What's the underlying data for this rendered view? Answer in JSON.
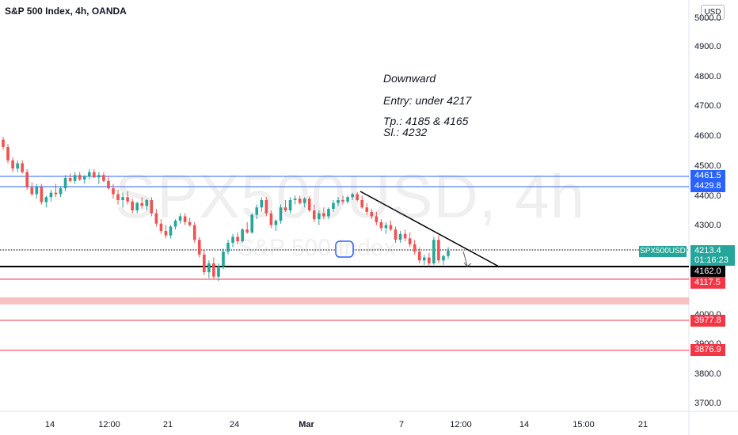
{
  "header": {
    "title": "S&P 500 Index, 4h, OANDA",
    "currency_button": "USD"
  },
  "watermark": {
    "symbol": "SPX500USD, 4h",
    "name": "S&P 500 Index"
  },
  "annotation": {
    "line1": "Downward",
    "line2": "Entry: under 4217",
    "line3": "Tp.: 4185 & 4165",
    "line4": "Sl.: 4232"
  },
  "price_axis": {
    "ticks": [
      "5000.0",
      "4900.0",
      "4800.0",
      "4700.0",
      "4600.0",
      "4500.0",
      "4400.0",
      "4300.0",
      "4000.0",
      "3900.0",
      "3800.0",
      "3700.0"
    ]
  },
  "time_axis": {
    "ticks": [
      "14",
      "12:00",
      "21",
      "24",
      "Mar",
      "7",
      "12:00",
      "14",
      "15:00",
      "21"
    ]
  },
  "price_tags": {
    "level1": "4461.5",
    "level2": "4429.8",
    "current_price": "4213.4",
    "countdown": "01:16:23",
    "symbol_label": "SPX500USD",
    "level3": "4162.0",
    "level4": "4117.5",
    "level5": "3977.8",
    "level6": "3876.9"
  },
  "colors": {
    "up": "#26a69a",
    "down": "#ef5350",
    "blue_line": "#2962ff",
    "red_line": "#f23645",
    "black_line": "#000000",
    "zone": "#f7c1c1"
  },
  "chart_data": {
    "type": "candlestick",
    "title": "S&P 500 Index, 4h, OANDA",
    "y_axis_range": [
      3650,
      5050
    ],
    "horizontal_levels": [
      4461.5,
      4429.8,
      4220,
      4162.0,
      4117.5,
      3977.8,
      3876.9
    ],
    "supply_zone": [
      4030,
      4050
    ],
    "last_price": 4213.4,
    "trendline": {
      "from_price": 4410,
      "to_price": 4162
    },
    "candles": [
      [
        4590,
        4600,
        4555,
        4565
      ],
      [
        4565,
        4575,
        4510,
        4520
      ],
      [
        4520,
        4530,
        4480,
        4492
      ],
      [
        4492,
        4520,
        4480,
        4510
      ],
      [
        4510,
        4520,
        4475,
        4480
      ],
      [
        4480,
        4490,
        4420,
        4428
      ],
      [
        4428,
        4445,
        4400,
        4405
      ],
      [
        4405,
        4440,
        4390,
        4430
      ],
      [
        4430,
        4440,
        4370,
        4378
      ],
      [
        4378,
        4400,
        4360,
        4395
      ],
      [
        4395,
        4420,
        4380,
        4410
      ],
      [
        4410,
        4440,
        4395,
        4405
      ],
      [
        4405,
        4430,
        4395,
        4425
      ],
      [
        4425,
        4470,
        4415,
        4460
      ],
      [
        4460,
        4475,
        4445,
        4450
      ],
      [
        4450,
        4480,
        4440,
        4470
      ],
      [
        4470,
        4480,
        4450,
        4455
      ],
      [
        4455,
        4470,
        4440,
        4465
      ],
      [
        4465,
        4490,
        4455,
        4480
      ],
      [
        4480,
        4490,
        4460,
        4462
      ],
      [
        4462,
        4480,
        4440,
        4470
      ],
      [
        4470,
        4480,
        4445,
        4450
      ],
      [
        4450,
        4465,
        4420,
        4425
      ],
      [
        4425,
        4440,
        4390,
        4405
      ],
      [
        4405,
        4420,
        4370,
        4385
      ],
      [
        4385,
        4410,
        4360,
        4395
      ],
      [
        4395,
        4415,
        4370,
        4380
      ],
      [
        4380,
        4390,
        4340,
        4350
      ],
      [
        4350,
        4380,
        4340,
        4375
      ],
      [
        4375,
        4395,
        4355,
        4365
      ],
      [
        4365,
        4390,
        4350,
        4385
      ],
      [
        4385,
        4395,
        4330,
        4340
      ],
      [
        4340,
        4355,
        4295,
        4305
      ],
      [
        4305,
        4320,
        4270,
        4280
      ],
      [
        4280,
        4300,
        4255,
        4265
      ],
      [
        4265,
        4300,
        4255,
        4295
      ],
      [
        4295,
        4320,
        4285,
        4315
      ],
      [
        4315,
        4340,
        4305,
        4330
      ],
      [
        4330,
        4340,
        4300,
        4310
      ],
      [
        4310,
        4325,
        4295,
        4300
      ],
      [
        4300,
        4310,
        4240,
        4250
      ],
      [
        4250,
        4260,
        4190,
        4200
      ],
      [
        4200,
        4215,
        4130,
        4140
      ],
      [
        4140,
        4180,
        4120,
        4170
      ],
      [
        4170,
        4190,
        4115,
        4125
      ],
      [
        4125,
        4170,
        4110,
        4160
      ],
      [
        4160,
        4220,
        4150,
        4210
      ],
      [
        4210,
        4250,
        4200,
        4240
      ],
      [
        4240,
        4270,
        4225,
        4260
      ],
      [
        4260,
        4275,
        4235,
        4245
      ],
      [
        4245,
        4290,
        4240,
        4285
      ],
      [
        4285,
        4310,
        4270,
        4275
      ],
      [
        4275,
        4340,
        4270,
        4335
      ],
      [
        4335,
        4370,
        4320,
        4360
      ],
      [
        4360,
        4395,
        4345,
        4385
      ],
      [
        4385,
        4395,
        4330,
        4340
      ],
      [
        4340,
        4350,
        4290,
        4300
      ],
      [
        4300,
        4320,
        4280,
        4315
      ],
      [
        4315,
        4370,
        4305,
        4360
      ],
      [
        4360,
        4385,
        4345,
        4350
      ],
      [
        4350,
        4395,
        4340,
        4385
      ],
      [
        4385,
        4400,
        4370,
        4390
      ],
      [
        4390,
        4400,
        4370,
        4375
      ],
      [
        4375,
        4395,
        4360,
        4390
      ],
      [
        4390,
        4398,
        4345,
        4350
      ],
      [
        4350,
        4370,
        4310,
        4320
      ],
      [
        4320,
        4350,
        4300,
        4340
      ],
      [
        4340,
        4360,
        4320,
        4330
      ],
      [
        4330,
        4360,
        4320,
        4355
      ],
      [
        4355,
        4385,
        4345,
        4375
      ],
      [
        4375,
        4395,
        4365,
        4385
      ],
      [
        4385,
        4400,
        4370,
        4380
      ],
      [
        4380,
        4400,
        4372,
        4395
      ],
      [
        4395,
        4410,
        4385,
        4405
      ],
      [
        4405,
        4412,
        4380,
        4385
      ],
      [
        4385,
        4400,
        4355,
        4360
      ],
      [
        4360,
        4375,
        4335,
        4345
      ],
      [
        4345,
        4355,
        4320,
        4330
      ],
      [
        4330,
        4345,
        4300,
        4310
      ],
      [
        4310,
        4320,
        4280,
        4290
      ],
      [
        4290,
        4310,
        4270,
        4300
      ],
      [
        4300,
        4315,
        4280,
        4285
      ],
      [
        4285,
        4295,
        4240,
        4250
      ],
      [
        4250,
        4280,
        4240,
        4270
      ],
      [
        4270,
        4285,
        4245,
        4255
      ],
      [
        4255,
        4275,
        4225,
        4235
      ],
      [
        4235,
        4250,
        4200,
        4210
      ],
      [
        4210,
        4225,
        4170,
        4180
      ],
      [
        4180,
        4200,
        4165,
        4190
      ],
      [
        4190,
        4205,
        4160,
        4170
      ],
      [
        4170,
        4260,
        4165,
        4250
      ],
      [
        4250,
        4265,
        4170,
        4180
      ],
      [
        4180,
        4200,
        4165,
        4195
      ],
      [
        4195,
        4225,
        4185,
        4213
      ]
    ]
  }
}
